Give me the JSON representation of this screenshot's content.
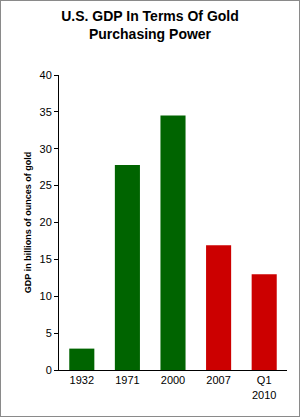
{
  "chart_data": {
    "type": "bar",
    "title": "U.S. GDP In Terms Of Gold Purchasing Power",
    "y_label": "GDP in billions of ounces of gold",
    "categories": [
      "1932",
      "1971",
      "2000",
      "2007",
      "Q1 2010"
    ],
    "values": [
      2.9,
      27.8,
      34.5,
      16.9,
      13.0
    ],
    "colors": [
      "#006400",
      "#006400",
      "#006400",
      "#cc0000",
      "#cc0000"
    ],
    "ylim": [
      0,
      40
    ],
    "yticks": [
      0,
      5,
      10,
      15,
      20,
      25,
      30,
      35,
      40
    ],
    "grid": false
  }
}
